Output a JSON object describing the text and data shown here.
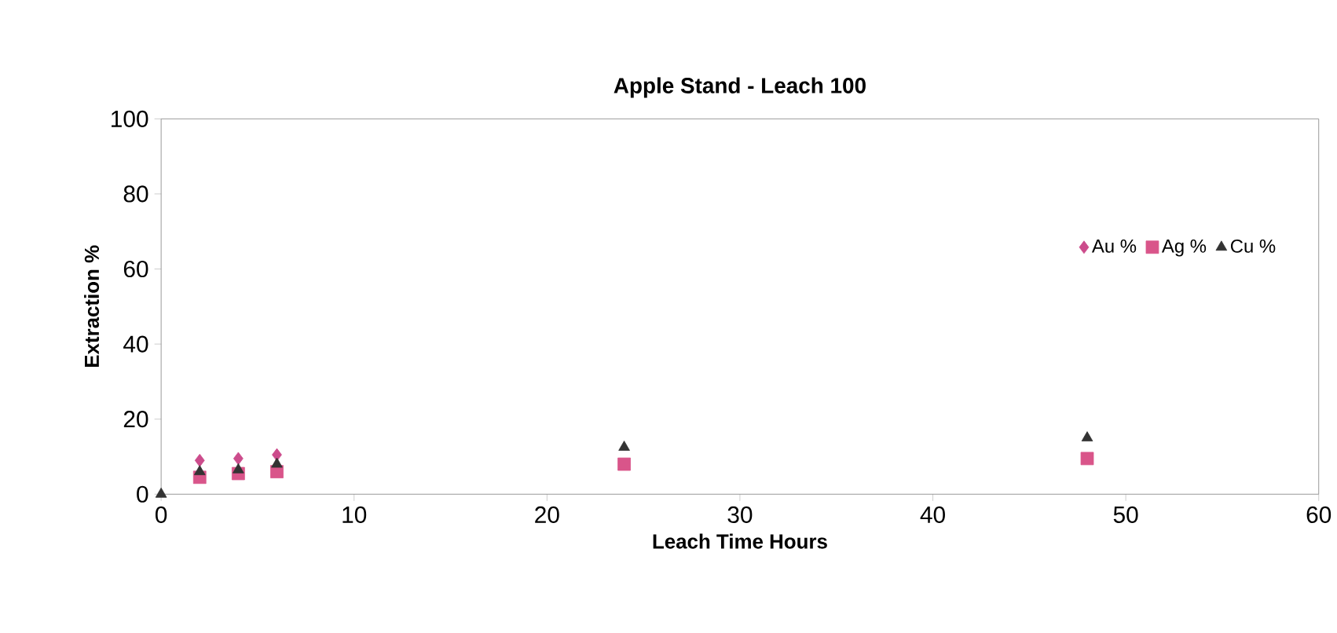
{
  "chart_data": {
    "type": "scatter",
    "title": "Apple Stand - Leach 100",
    "xlabel": "Leach Time Hours",
    "ylabel": "Extraction %",
    "xlim": [
      0,
      60
    ],
    "xticks": [
      0,
      10,
      20,
      30,
      40,
      50,
      60
    ],
    "ylim": [
      0,
      100
    ],
    "yticks": [
      0,
      20,
      40,
      60,
      80,
      100
    ],
    "x": [
      0,
      2,
      4,
      6,
      24,
      48
    ],
    "grid": false,
    "legend": "top right",
    "series": [
      {
        "name": "Au %",
        "color": "#cc4c8c",
        "marker": "diamond",
        "values": [
          null,
          9,
          9.5,
          10.5,
          null,
          null
        ]
      },
      {
        "name": "Ag %",
        "color": "#d9558a",
        "marker": "square",
        "values": [
          null,
          4.5,
          5.5,
          6,
          8,
          9.5
        ]
      },
      {
        "name": "Cu %",
        "color": "#333333",
        "marker": "triangle",
        "values": [
          0,
          6,
          6.5,
          8,
          12.5,
          15
        ]
      }
    ]
  }
}
